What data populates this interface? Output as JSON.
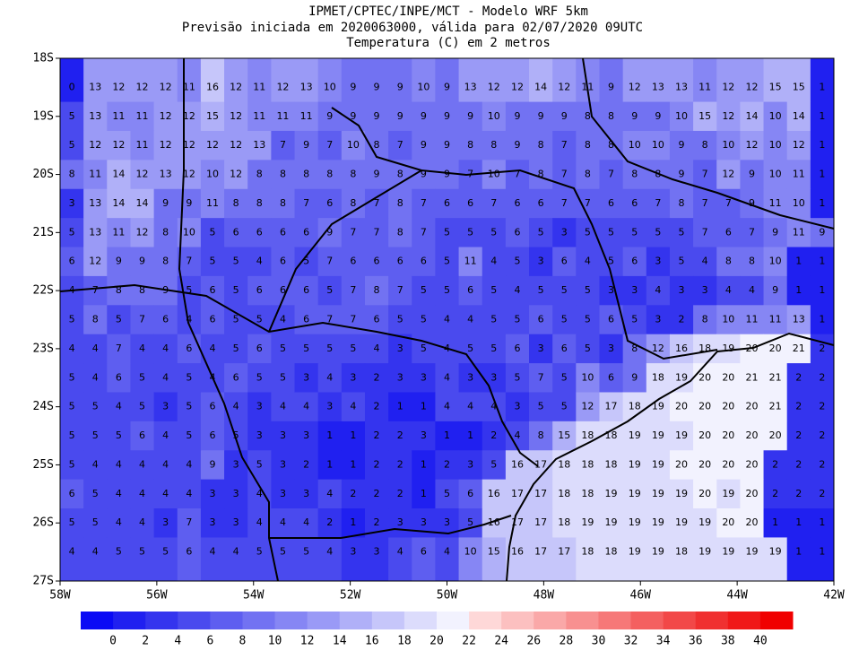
{
  "title_lines": [
    "IPMET/CPTEC/INPE/MCT - Modelo WRF 5km",
    "Previsão iniciada em 2020063000, válida para 02/07/2020 09UTC",
    "Temperatura (C) em 2 metros"
  ],
  "map": {
    "xlim": [
      -58,
      -42
    ],
    "ylim": [
      -27,
      -18
    ],
    "xticks": [
      {
        "value": -58,
        "label": "58W"
      },
      {
        "value": -56,
        "label": "56W"
      },
      {
        "value": -54,
        "label": "54W"
      },
      {
        "value": -52,
        "label": "52W"
      },
      {
        "value": -50,
        "label": "50W"
      },
      {
        "value": -48,
        "label": "48W"
      },
      {
        "value": -46,
        "label": "46W"
      },
      {
        "value": -44,
        "label": "44W"
      },
      {
        "value": -42,
        "label": "42W"
      }
    ],
    "yticks": [
      {
        "value": -18,
        "label": "18S"
      },
      {
        "value": -19,
        "label": "19S"
      },
      {
        "value": -20,
        "label": "20S"
      },
      {
        "value": -21,
        "label": "21S"
      },
      {
        "value": -22,
        "label": "22S"
      },
      {
        "value": -23,
        "label": "23S"
      },
      {
        "value": -24,
        "label": "24S"
      },
      {
        "value": -25,
        "label": "25S"
      },
      {
        "value": -26,
        "label": "26S"
      },
      {
        "value": -27,
        "label": "27S"
      }
    ],
    "rows": [
      [
        0,
        13,
        12,
        12,
        12,
        11,
        16,
        12,
        11,
        12,
        13,
        10,
        9,
        9,
        9,
        10,
        9,
        13,
        12,
        12,
        14,
        12,
        11,
        9,
        12,
        13,
        13,
        11,
        12,
        12,
        15,
        15,
        1
      ],
      [
        5,
        13,
        11,
        11,
        12,
        12,
        15,
        12,
        11,
        11,
        11,
        9,
        9,
        9,
        9,
        9,
        9,
        9,
        10,
        9,
        9,
        9,
        8,
        8,
        9,
        9,
        10,
        15,
        12,
        14,
        10,
        14,
        1
      ],
      [
        5,
        12,
        12,
        11,
        12,
        12,
        12,
        12,
        13,
        7,
        9,
        7,
        10,
        8,
        7,
        9,
        9,
        8,
        8,
        9,
        8,
        7,
        8,
        8,
        10,
        10,
        9,
        8,
        10,
        12,
        10,
        12,
        1
      ],
      [
        8,
        11,
        14,
        12,
        13,
        12,
        10,
        12,
        8,
        8,
        8,
        8,
        8,
        9,
        8,
        9,
        9,
        7,
        10,
        7,
        8,
        7,
        8,
        7,
        8,
        8,
        9,
        7,
        12,
        9,
        10,
        11,
        1
      ],
      [
        3,
        13,
        14,
        14,
        9,
        9,
        11,
        8,
        8,
        8,
        7,
        6,
        8,
        7,
        8,
        7,
        6,
        6,
        7,
        6,
        6,
        7,
        7,
        6,
        6,
        7,
        8,
        7,
        7,
        9,
        11,
        10,
        1
      ],
      [
        5,
        13,
        11,
        12,
        8,
        10,
        5,
        6,
        6,
        6,
        6,
        9,
        7,
        7,
        8,
        7,
        5,
        5,
        5,
        6,
        5,
        3,
        5,
        5,
        5,
        5,
        5,
        7,
        6,
        7,
        9,
        11,
        9
      ],
      [
        6,
        12,
        9,
        9,
        8,
        7,
        5,
        5,
        4,
        6,
        5,
        7,
        6,
        6,
        6,
        6,
        5,
        11,
        4,
        5,
        3,
        6,
        4,
        5,
        6,
        3,
        5,
        4,
        8,
        8,
        10,
        1,
        1
      ],
      [
        4,
        7,
        8,
        8,
        9,
        5,
        6,
        5,
        6,
        6,
        6,
        5,
        7,
        8,
        7,
        5,
        5,
        6,
        5,
        4,
        5,
        5,
        5,
        3,
        3,
        4,
        3,
        3,
        4,
        4,
        9,
        1,
        1
      ],
      [
        5,
        8,
        5,
        7,
        6,
        4,
        6,
        5,
        5,
        4,
        6,
        7,
        7,
        6,
        5,
        5,
        4,
        4,
        5,
        5,
        6,
        5,
        5,
        6,
        5,
        3,
        2,
        8,
        10,
        11,
        11,
        13,
        1
      ],
      [
        4,
        4,
        7,
        4,
        4,
        6,
        4,
        5,
        6,
        5,
        5,
        5,
        5,
        4,
        3,
        5,
        4,
        5,
        5,
        6,
        3,
        6,
        5,
        3,
        8,
        12,
        16,
        18,
        19,
        20,
        20,
        21,
        2
      ],
      [
        5,
        4,
        6,
        5,
        4,
        5,
        4,
        6,
        5,
        5,
        3,
        4,
        3,
        2,
        3,
        3,
        4,
        3,
        3,
        5,
        7,
        5,
        10,
        6,
        9,
        18,
        19,
        20,
        20,
        21,
        21,
        2,
        2
      ],
      [
        5,
        5,
        4,
        5,
        3,
        5,
        6,
        4,
        3,
        4,
        4,
        3,
        4,
        2,
        1,
        1,
        4,
        4,
        4,
        3,
        5,
        5,
        12,
        17,
        18,
        19,
        20,
        20,
        20,
        20,
        21,
        2,
        2
      ],
      [
        5,
        5,
        5,
        6,
        4,
        5,
        6,
        5,
        3,
        3,
        3,
        1,
        1,
        2,
        2,
        3,
        1,
        1,
        2,
        4,
        8,
        15,
        18,
        18,
        19,
        19,
        19,
        20,
        20,
        20,
        20,
        2,
        2
      ],
      [
        5,
        4,
        4,
        4,
        4,
        4,
        9,
        3,
        5,
        3,
        2,
        1,
        1,
        2,
        2,
        1,
        2,
        3,
        5,
        16,
        17,
        18,
        18,
        18,
        19,
        19,
        20,
        20,
        20,
        20,
        2,
        2,
        2
      ],
      [
        6,
        5,
        4,
        4,
        4,
        4,
        3,
        3,
        4,
        3,
        3,
        4,
        2,
        2,
        2,
        1,
        5,
        6,
        16,
        17,
        17,
        18,
        18,
        19,
        19,
        19,
        19,
        20,
        19,
        20,
        2,
        2,
        2
      ],
      [
        5,
        5,
        4,
        4,
        3,
        7,
        3,
        3,
        4,
        4,
        4,
        2,
        1,
        2,
        3,
        3,
        3,
        5,
        16,
        17,
        17,
        18,
        19,
        19,
        19,
        19,
        19,
        19,
        20,
        20,
        1,
        1,
        1
      ],
      [
        4,
        4,
        5,
        5,
        5,
        6,
        4,
        4,
        5,
        5,
        5,
        4,
        3,
        3,
        4,
        6,
        4,
        10,
        15,
        16,
        17,
        17,
        18,
        18,
        19,
        19,
        18,
        19,
        19,
        19,
        19,
        1,
        1
      ]
    ]
  },
  "colorbar": {
    "levels": [
      0,
      2,
      4,
      6,
      8,
      10,
      12,
      14,
      16,
      18,
      20,
      22,
      24,
      26,
      28,
      30,
      32,
      34,
      36,
      38,
      40
    ],
    "colors": [
      "#0a0af5",
      "#2020f0",
      "#3434ee",
      "#4a4aee",
      "#5e5ef0",
      "#7272f2",
      "#8686f4",
      "#9a9af6",
      "#b0b0f8",
      "#c6c6fa",
      "#dcdcfc",
      "#f2f2fe",
      "#fed8d8",
      "#fcc0c0",
      "#faa8a8",
      "#f89090",
      "#f67878",
      "#f46060",
      "#f24848",
      "#f03030",
      "#f01818",
      "#f00000"
    ]
  }
}
